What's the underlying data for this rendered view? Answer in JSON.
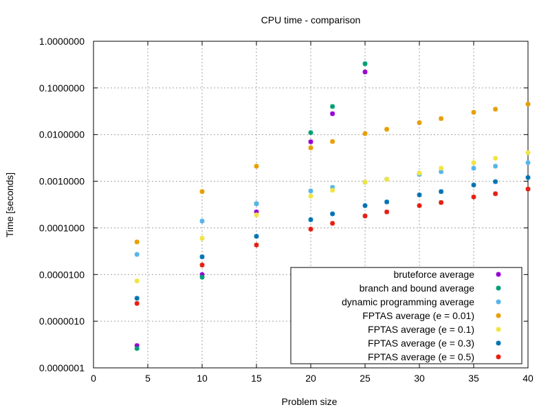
{
  "chart_data": {
    "type": "scatter",
    "title": "CPU time - comparison",
    "xlabel": "Problem size",
    "ylabel": "Time [seconds]",
    "xlim": [
      0,
      40
    ],
    "ylim": [
      1e-07,
      1
    ],
    "yscale": "log",
    "grid": true,
    "legend_position": "bottom-right",
    "x_ticks": [
      {
        "value": 0,
        "label": "0"
      },
      {
        "value": 5,
        "label": "5"
      },
      {
        "value": 10,
        "label": "10"
      },
      {
        "value": 15,
        "label": "15"
      },
      {
        "value": 20,
        "label": "20"
      },
      {
        "value": 25,
        "label": "25"
      },
      {
        "value": 30,
        "label": "30"
      },
      {
        "value": 35,
        "label": "35"
      },
      {
        "value": 40,
        "label": "40"
      }
    ],
    "y_ticks": [
      {
        "value": 1e-07,
        "label": "0.0000001"
      },
      {
        "value": 1e-06,
        "label": "0.0000010"
      },
      {
        "value": 1e-05,
        "label": "0.0000100"
      },
      {
        "value": 0.0001,
        "label": "0.0001000"
      },
      {
        "value": 0.001,
        "label": "0.0010000"
      },
      {
        "value": 0.01,
        "label": "0.0100000"
      },
      {
        "value": 0.1,
        "label": "0.1000000"
      },
      {
        "value": 1,
        "label": "1.0000000"
      }
    ],
    "series": [
      {
        "name": "bruteforce average",
        "color": "#9400d3",
        "points": [
          [
            4,
            3e-07
          ],
          [
            10,
            1e-05
          ],
          [
            15,
            0.00022
          ],
          [
            20,
            0.007
          ],
          [
            22,
            0.028
          ],
          [
            25,
            0.22
          ]
        ]
      },
      {
        "name": "branch and bound average",
        "color": "#009e73",
        "points": [
          [
            4,
            2.6e-07
          ],
          [
            10,
            8.8e-06
          ],
          [
            15,
            0.00033
          ],
          [
            20,
            0.011
          ],
          [
            22,
            0.04
          ],
          [
            25,
            0.33
          ]
        ]
      },
      {
        "name": "dynamic programming average",
        "color": "#56b4e9",
        "points": [
          [
            4,
            2.7e-05
          ],
          [
            10,
            0.00014
          ],
          [
            15,
            0.00033
          ],
          [
            20,
            0.00062
          ],
          [
            22,
            0.00074
          ],
          [
            25,
            0.00095
          ],
          [
            27,
            0.0011
          ],
          [
            30,
            0.0014
          ],
          [
            32,
            0.0016
          ],
          [
            35,
            0.0019
          ],
          [
            37,
            0.0021
          ],
          [
            40,
            0.0025
          ]
        ]
      },
      {
        "name": "FPTAS average (e = 0.01)",
        "color": "#e69f00",
        "points": [
          [
            4,
            5e-05
          ],
          [
            10,
            0.0006
          ],
          [
            15,
            0.0021
          ],
          [
            20,
            0.0052
          ],
          [
            22,
            0.0071
          ],
          [
            25,
            0.0105
          ],
          [
            27,
            0.013
          ],
          [
            30,
            0.018
          ],
          [
            32,
            0.022
          ],
          [
            35,
            0.03
          ],
          [
            37,
            0.035
          ],
          [
            40,
            0.045
          ]
        ]
      },
      {
        "name": "FPTAS average (e = 0.1)",
        "color": "#f0e442",
        "points": [
          [
            4,
            7.3e-06
          ],
          [
            10,
            6e-05
          ],
          [
            15,
            0.00019
          ],
          [
            20,
            0.00048
          ],
          [
            22,
            0.00064
          ],
          [
            25,
            0.00096
          ],
          [
            27,
            0.0011
          ],
          [
            30,
            0.0015
          ],
          [
            32,
            0.0019
          ],
          [
            35,
            0.0025
          ],
          [
            37,
            0.0031
          ],
          [
            40,
            0.0041
          ]
        ]
      },
      {
        "name": "FPTAS average (e = 0.3)",
        "color": "#0072b2",
        "points": [
          [
            4,
            3.1e-06
          ],
          [
            10,
            2.4e-05
          ],
          [
            15,
            6.6e-05
          ],
          [
            20,
            0.00015
          ],
          [
            22,
            0.0002
          ],
          [
            25,
            0.0003
          ],
          [
            27,
            0.00036
          ],
          [
            30,
            0.00051
          ],
          [
            32,
            0.0006
          ],
          [
            35,
            0.00083
          ],
          [
            37,
            0.00098
          ],
          [
            40,
            0.0012
          ]
        ]
      },
      {
        "name": "FPTAS average (e = 0.5)",
        "color": "#e51e10",
        "points": [
          [
            4,
            2.4e-06
          ],
          [
            10,
            1.6e-05
          ],
          [
            15,
            4.3e-05
          ],
          [
            20,
            9.4e-05
          ],
          [
            22,
            0.000125
          ],
          [
            25,
            0.00018
          ],
          [
            27,
            0.00022
          ],
          [
            30,
            0.0003
          ],
          [
            32,
            0.00035
          ],
          [
            35,
            0.00046
          ],
          [
            37,
            0.00054
          ],
          [
            40,
            0.00068
          ]
        ]
      }
    ]
  }
}
